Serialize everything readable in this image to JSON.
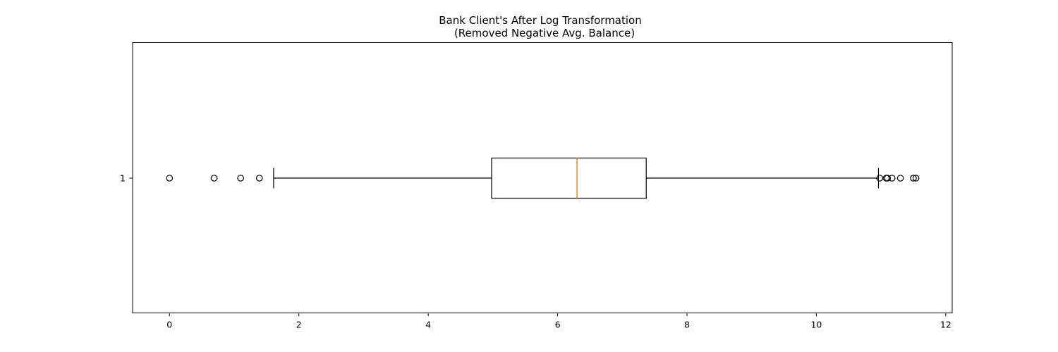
{
  "chart_data": {
    "type": "boxplot",
    "orientation": "horizontal",
    "title": "Bank Client's After Log Transformation",
    "subtitle": "(Removed Negative Avg. Balance)",
    "xlabel": "",
    "ylabel": "",
    "xlim": [
      -0.57,
      12.1
    ],
    "x_ticks": [
      0,
      2,
      4,
      6,
      8,
      10,
      12
    ],
    "y_ticks": [
      "1"
    ],
    "grid": false,
    "boxes": [
      {
        "label": "1",
        "whisker_low": 1.61,
        "q1": 4.98,
        "median": 6.3,
        "q3": 7.37,
        "whisker_high": 10.96,
        "outliers": [
          0.0,
          0.69,
          1.1,
          1.39,
          10.98,
          11.08,
          11.1,
          11.17,
          11.3,
          11.5,
          11.54
        ]
      }
    ],
    "colors": {
      "box": "#000000",
      "median": "#ff7f0e",
      "outlier": "#000000"
    }
  }
}
